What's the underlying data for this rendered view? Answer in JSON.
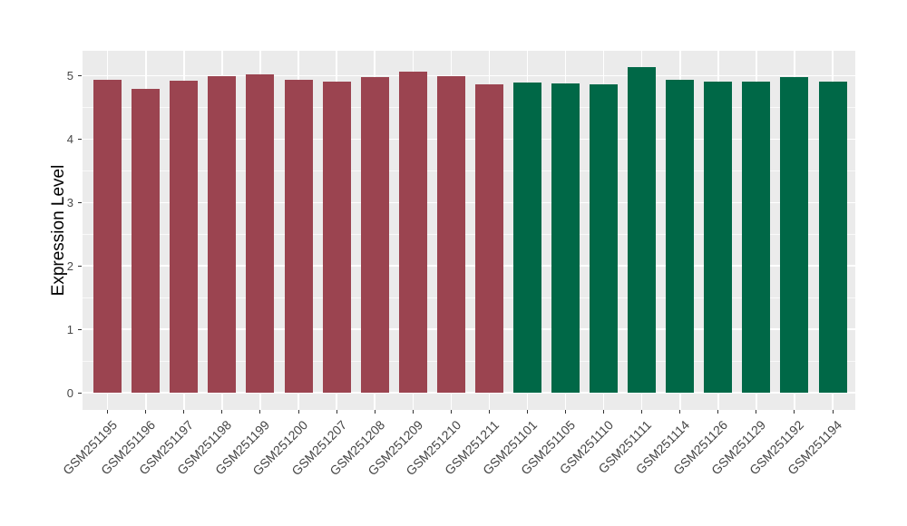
{
  "chart_data": {
    "type": "bar",
    "title": "",
    "xlabel": "",
    "ylabel": "Expression Level",
    "ylim": [
      0,
      5.38
    ],
    "yticks": [
      0,
      1,
      2,
      3,
      4,
      5
    ],
    "grid": true,
    "legend_position": "none",
    "panel_background": "#EBEBEB",
    "gridline_color": "#FFFFFF",
    "categories": [
      "GSM251195",
      "GSM251196",
      "GSM251197",
      "GSM251198",
      "GSM251199",
      "GSM251200",
      "GSM251207",
      "GSM251208",
      "GSM251209",
      "GSM251210",
      "GSM251211",
      "GSM251101",
      "GSM251105",
      "GSM251110",
      "GSM251111",
      "GSM251114",
      "GSM251126",
      "GSM251129",
      "GSM251192",
      "GSM251194"
    ],
    "values": [
      4.94,
      4.79,
      4.92,
      4.99,
      5.02,
      4.93,
      4.9,
      4.98,
      5.07,
      4.99,
      4.86,
      4.89,
      4.88,
      4.87,
      5.13,
      4.93,
      4.91,
      4.9,
      4.98,
      4.91
    ],
    "groups": [
      "group-1",
      "group-1",
      "group-1",
      "group-1",
      "group-1",
      "group-1",
      "group-1",
      "group-1",
      "group-1",
      "group-1",
      "group-1",
      "group-2",
      "group-2",
      "group-2",
      "group-2",
      "group-2",
      "group-2",
      "group-2",
      "group-2",
      "group-2"
    ],
    "group_colors": {
      "group-1": "#9B4450",
      "group-2": "#006847"
    }
  }
}
